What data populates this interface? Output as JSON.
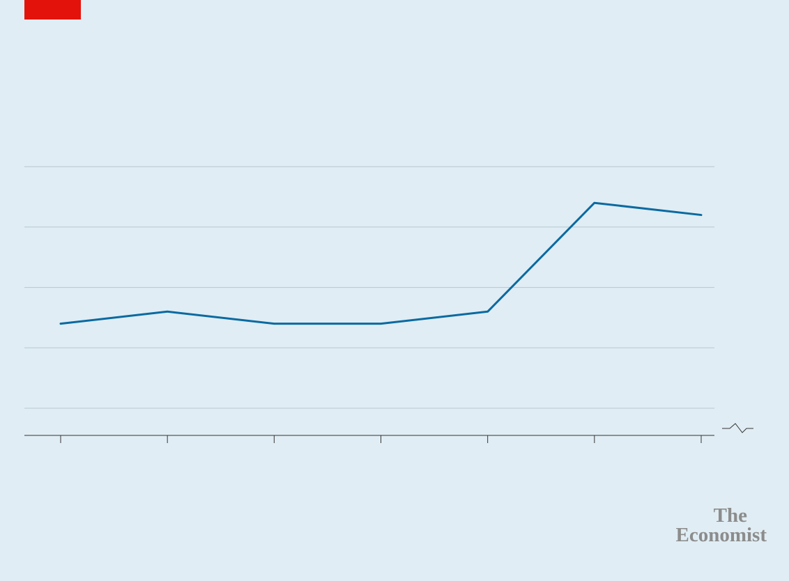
{
  "colors": {
    "background": "#e0edf4",
    "brand_red": "#e3120b",
    "series_line": "#0a6aa1",
    "gridline": "#b7c6cf",
    "axis": "#333333",
    "logo_text": "#8c8c8c"
  },
  "logo": {
    "line1": "The",
    "line2": "Economist"
  },
  "chart_data": {
    "type": "line",
    "x": [
      1,
      2,
      3,
      4,
      5,
      6,
      7
    ],
    "series": [
      {
        "values": [
          2.9,
          3.1,
          2.9,
          2.9,
          3.1,
          4.9,
          4.7
        ]
      }
    ],
    "ylim": [
      1.0,
      5.5
    ],
    "y_gridlines": [
      1.5,
      2.5,
      3.5,
      4.5,
      5.5
    ],
    "grid": true,
    "broken_axis": true,
    "tick_labels_visible": false
  }
}
